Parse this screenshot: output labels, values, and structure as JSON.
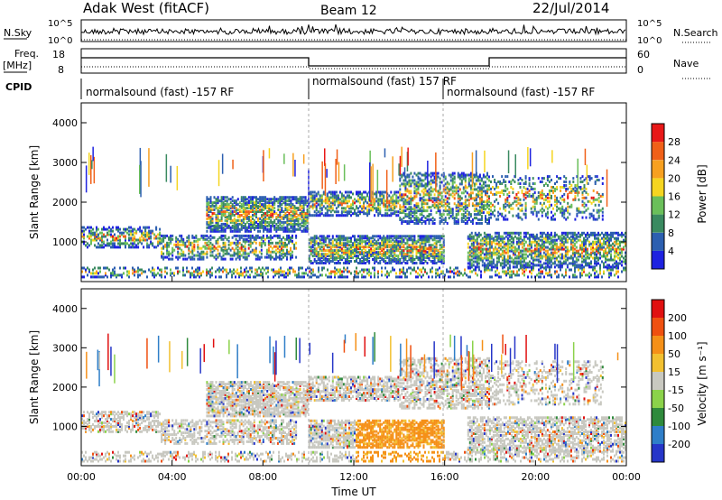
{
  "header": {
    "title": "Adak West (fitACF)",
    "beam": "Beam 12",
    "date": "22/Jul/2014"
  },
  "params": {
    "nsky_label": "N.Sky",
    "nsky_ticks": [
      "10^5",
      "10^0"
    ],
    "nsearch_label": "N.Search",
    "nsearch_ticks": [
      "10^5",
      "10^0"
    ],
    "freq_label": "Freq.",
    "freq_unit": "[MHz]",
    "freq_ticks": [
      "18",
      "8"
    ],
    "nave_label": "Nave",
    "nave_ticks": [
      "60",
      "0"
    ],
    "cpid_label": "CPID",
    "cpid_segments": [
      "normalsound (fast) -157 RF",
      "normalsound (fast) 157 RF",
      "normalsound (fast) -157 RF"
    ]
  },
  "chart_data": [
    {
      "type": "heatmap",
      "panel": "power",
      "ylabel": "Slant Range [km]",
      "xlabel": "",
      "y_ticks": [
        "1000",
        "2000",
        "3000",
        "4000"
      ],
      "colorbar_label": "Power [dB]",
      "colorbar_ticks": [
        "4",
        "8",
        "12",
        "16",
        "20",
        "24",
        "28"
      ],
      "colors": [
        "#1e22e0",
        "#2c5fb0",
        "#3a8a60",
        "#6abf5a",
        "#f5d520",
        "#f7a020",
        "#f06018",
        "#e81818"
      ]
    },
    {
      "type": "heatmap",
      "panel": "velocity",
      "ylabel": "Slant Range [km]",
      "xlabel": "Time UT",
      "x_ticks": [
        "00:00",
        "04:00",
        "08:00",
        "12:00",
        "16:00",
        "20:00",
        "00:00"
      ],
      "y_ticks": [
        "1000",
        "2000",
        "3000",
        "4000"
      ],
      "colorbar_label": "Velocity [m s⁻¹]",
      "colorbar_ticks": [
        "200",
        "100",
        "50",
        "15",
        "-15",
        "-50",
        "-100",
        "-200"
      ],
      "colors": [
        "#2636c8",
        "#2f7ec8",
        "#2f8a3c",
        "#8bd24a",
        "#c8c8c0",
        "#f2c030",
        "#f59018",
        "#ef5010",
        "#e01010"
      ]
    }
  ]
}
